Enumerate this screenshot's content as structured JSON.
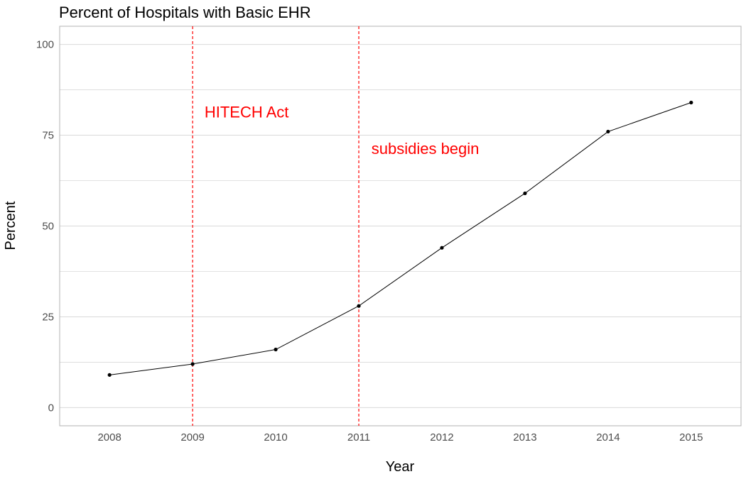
{
  "chart_data": {
    "type": "line",
    "title": "Percent of Hospitals with Basic EHR",
    "xlabel": "Year",
    "ylabel": "Percent",
    "x": [
      2008,
      2009,
      2010,
      2011,
      2012,
      2013,
      2014,
      2015
    ],
    "series": [
      {
        "values": [
          9,
          12,
          16,
          28,
          44,
          59,
          76,
          84
        ]
      }
    ],
    "xlim": [
      2007.4,
      2015.6
    ],
    "ylim": [
      -5,
      105
    ],
    "x_ticks": [
      2008,
      2009,
      2010,
      2011,
      2012,
      2013,
      2014,
      2015
    ],
    "y_ticks": [
      0,
      25,
      50,
      75,
      100
    ],
    "y_minor_ticks": [
      12.5,
      37.5,
      62.5,
      87.5
    ],
    "grid": true,
    "vlines": [
      {
        "x": 2009,
        "label": "HITECH Act",
        "label_x": 2009.65,
        "label_y": 81
      },
      {
        "x": 2011,
        "label": "subsidies begin",
        "label_x": 2011.8,
        "label_y": 71
      }
    ],
    "colors": {
      "line": "#000000",
      "point": "#000000",
      "vline": "#ff0000",
      "annotation": "#ff0000",
      "grid": "#d9d9d9",
      "border": "#b3b3b3"
    }
  }
}
